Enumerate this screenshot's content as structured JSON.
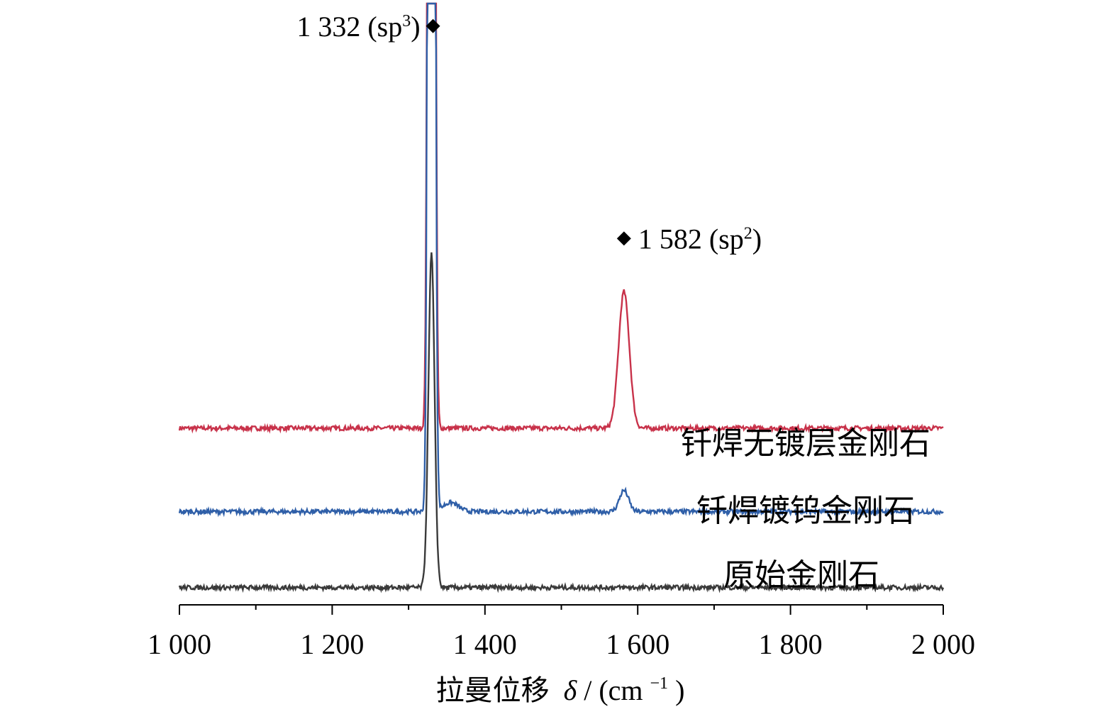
{
  "chart_data": {
    "type": "line",
    "xlabel_cjk": "拉曼位移",
    "xlabel_symbol": "δ",
    "xlabel_unit_prefix": " / (cm",
    "xlabel_unit_exp": "−1",
    "xlabel_unit_suffix": ")",
    "xlim": [
      1000,
      2000
    ],
    "x_ticks": [
      1000,
      1200,
      1400,
      1600,
      1800,
      2000
    ],
    "x_tick_labels": [
      "1 000",
      "1 200",
      "1 400",
      "1 600",
      "1 800",
      "2 000"
    ],
    "y_axis_shown": false,
    "grid": false,
    "colors": {
      "red": "#c8324a",
      "blue": "#2f5fa8",
      "black": "#3a3a3a"
    },
    "series": [
      {
        "name": "钎焊无镀层金刚石",
        "color": "#c8324a",
        "baseline": 0.23,
        "peaks": [
          {
            "x": 1330,
            "height": 4.8,
            "width": 3
          },
          {
            "x": 1582,
            "height": 0.18,
            "width": 7
          }
        ]
      },
      {
        "name": "钎焊镀钨金刚石",
        "color": "#2f5fa8",
        "baseline": 0.12,
        "peaks": [
          {
            "x": 1330,
            "height": 4.5,
            "width": 3
          },
          {
            "x": 1355,
            "height": 0.012,
            "width": 10
          },
          {
            "x": 1582,
            "height": 0.028,
            "width": 6
          }
        ]
      },
      {
        "name": "原始金刚石",
        "color": "#3a3a3a",
        "baseline": 0.02,
        "peaks": [
          {
            "x": 1330,
            "height": 0.44,
            "width": 4
          }
        ]
      }
    ],
    "annotations": [
      {
        "x": 1332,
        "y": 0.76,
        "text_main": "1 332 (sp",
        "text_sup": "3",
        "text_end": ")",
        "side": "left"
      },
      {
        "x": 1582,
        "y": 0.48,
        "text_main": "1 582 (sp",
        "text_sup": "2",
        "text_end": ")",
        "side": "right"
      }
    ]
  }
}
